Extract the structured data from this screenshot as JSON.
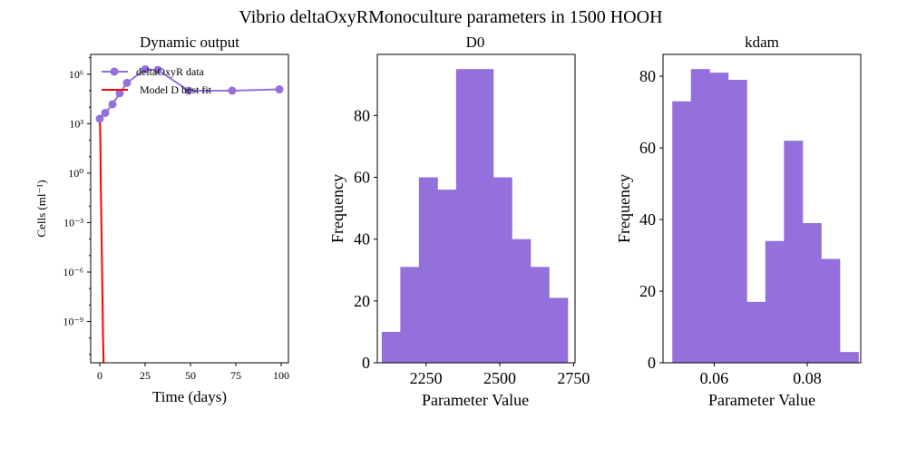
{
  "figure": {
    "suptitle": "Vibrio deltaOxyRMonoculture parameters in 1500 HOOH"
  },
  "colors": {
    "data_series": "#9370DB",
    "model_series": "#FF0000",
    "hist_fill": "#9370DB"
  },
  "chart_data": [
    {
      "type": "line",
      "title": "Dynamic output",
      "xlabel": "Time (days)",
      "ylabel": "Cells (ml⁻¹)",
      "yscale": "log",
      "xlim": [
        -5,
        104
      ],
      "ylim_log10": [
        -11.5,
        7.2
      ],
      "xticks": [
        0,
        25,
        50,
        75,
        100
      ],
      "yticks_log10": [
        -9,
        -6,
        -3,
        0,
        3,
        6
      ],
      "legend_position": "top-left",
      "series": [
        {
          "name": "deltaOxyR data",
          "color": "#9370DB",
          "marker": "circle",
          "x": [
            0,
            3,
            7,
            11,
            15,
            25,
            32,
            49,
            73,
            99
          ],
          "y": [
            2000,
            4500,
            15000,
            70000,
            300000,
            2000000,
            1800000,
            100000,
            100000,
            120000
          ]
        },
        {
          "name": "Model D best fit",
          "color": "#FF0000",
          "marker": "none",
          "x": [
            0,
            0.3,
            0.6,
            1.0,
            1.4,
            1.8,
            2.1
          ],
          "y_log10": [
            3.3,
            2.0,
            -1.0,
            -4.0,
            -7.0,
            -10.0,
            -11.5
          ]
        }
      ]
    },
    {
      "type": "bar",
      "subtype": "histogram",
      "title": "D0",
      "xlabel": "Parameter Value",
      "ylabel": "Frequency",
      "xlim": [
        2085,
        2755
      ],
      "ylim": [
        0,
        99.75
      ],
      "xticks": [
        2250,
        2500,
        2750
      ],
      "xtick_labels": [
        "2250",
        "2500",
        "2750"
      ],
      "yticks": [
        0,
        20,
        40,
        60,
        80
      ],
      "bin_edges": [
        2100,
        2163,
        2226,
        2289,
        2352,
        2415,
        2478,
        2541,
        2604,
        2667,
        2730
      ],
      "values": [
        10,
        31,
        60,
        56,
        95,
        95,
        60,
        40,
        31,
        21
      ]
    },
    {
      "type": "bar",
      "subtype": "histogram",
      "title": "kdam",
      "xlabel": "Parameter Value",
      "ylabel": "Frequency",
      "xlim": [
        0.049,
        0.0915
      ],
      "ylim": [
        0,
        86.1
      ],
      "xticks": [
        0.06,
        0.08
      ],
      "xtick_labels": [
        "0.06",
        "0.08"
      ],
      "yticks": [
        0,
        20,
        40,
        60,
        80
      ],
      "bin_edges": [
        0.051,
        0.055,
        0.059,
        0.063,
        0.067,
        0.071,
        0.075,
        0.079,
        0.083,
        0.087,
        0.091
      ],
      "values": [
        73,
        82,
        81,
        79,
        17,
        34,
        62,
        39,
        29,
        3
      ]
    }
  ]
}
